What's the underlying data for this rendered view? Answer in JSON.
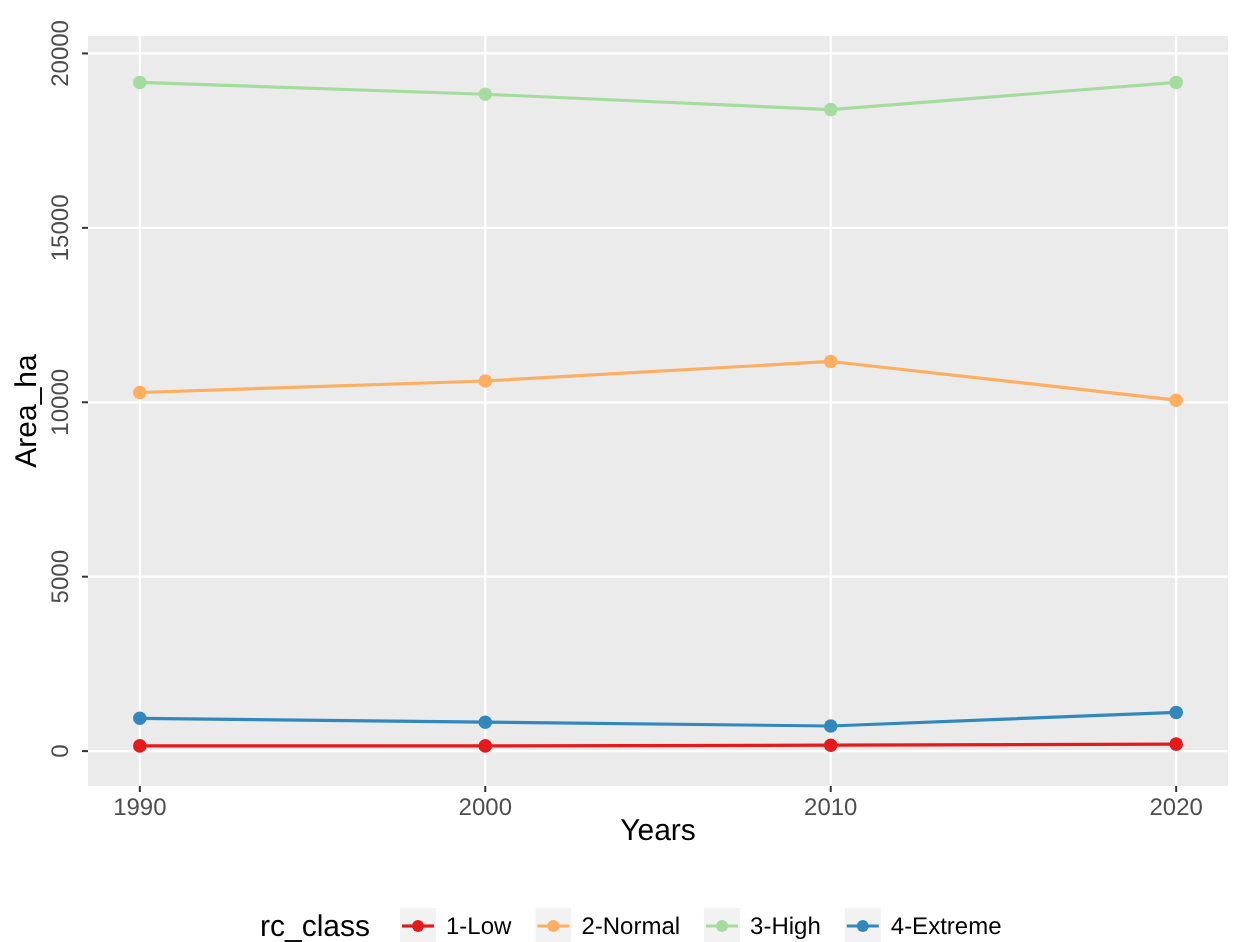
{
  "chart_data": {
    "type": "line",
    "xlabel": "Years",
    "ylabel": "Area_ha",
    "legend_title": "rc_class",
    "x": [
      1990,
      2000,
      2010,
      2020
    ],
    "series": [
      {
        "name": "1-Low",
        "color": "#e41a1c",
        "values": [
          150,
          150,
          170,
          200
        ]
      },
      {
        "name": "2-Normal",
        "color": "#fdae61",
        "values": [
          10280,
          10610,
          11170,
          10060
        ]
      },
      {
        "name": "3-High",
        "color": "#a6dba0",
        "values": [
          19170,
          18830,
          18390,
          19170
        ]
      },
      {
        "name": "4-Extreme",
        "color": "#3288bd",
        "values": [
          940,
          830,
          720,
          1110
        ]
      }
    ],
    "xlim": [
      1988.5,
      2021.5
    ],
    "xticks": [
      1990,
      2000,
      2010,
      2020
    ],
    "ylim": [
      -1000,
      20500
    ],
    "yticks": [
      0,
      5000,
      10000,
      15000,
      20000
    ],
    "grid": true,
    "legend": "bottom",
    "marker": "circle",
    "line_style": "solid"
  }
}
